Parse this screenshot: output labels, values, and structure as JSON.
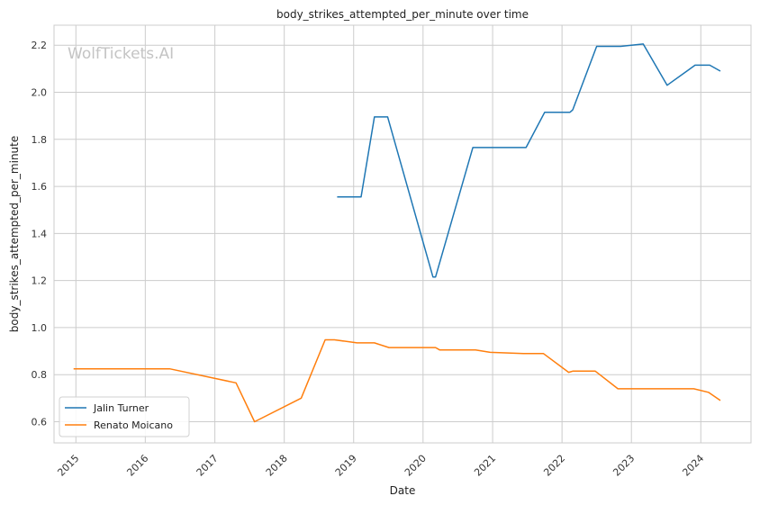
{
  "chart_data": {
    "type": "line",
    "title": "body_strikes_attempted_per_minute over time",
    "xlabel": "Date",
    "ylabel": "body_strikes_attempted_per_minute",
    "watermark": "WolfTickets.AI",
    "x_ticks": [
      "2015",
      "2016",
      "2017",
      "2018",
      "2019",
      "2020",
      "2021",
      "2022",
      "2023",
      "2024"
    ],
    "y_ticks": [
      "0.6",
      "0.8",
      "1.0",
      "1.2",
      "1.4",
      "1.6",
      "1.8",
      "2.0",
      "2.2"
    ],
    "xlim": [
      "2014-09-08",
      "2024-09-21"
    ],
    "ylim": [
      0.51,
      2.285
    ],
    "grid": true,
    "legend_position": "lower-left",
    "series": [
      {
        "name": "Jalin Turner",
        "color": "#1f77b4",
        "points": [
          [
            "2018-10-06",
            1.555
          ],
          [
            "2019-02-09",
            1.555
          ],
          [
            "2019-04-20",
            1.895
          ],
          [
            "2019-06-29",
            1.895
          ],
          [
            "2020-02-22",
            1.215
          ],
          [
            "2020-03-07",
            1.215
          ],
          [
            "2020-09-19",
            1.765
          ],
          [
            "2021-06-26",
            1.765
          ],
          [
            "2021-10-02",
            1.915
          ],
          [
            "2022-02-12",
            1.915
          ],
          [
            "2022-02-26",
            1.925
          ],
          [
            "2022-07-02",
            2.195
          ],
          [
            "2022-11-05",
            2.195
          ],
          [
            "2023-03-04",
            2.205
          ],
          [
            "2023-07-08",
            2.03
          ],
          [
            "2023-12-02",
            2.115
          ],
          [
            "2024-02-17",
            2.115
          ],
          [
            "2024-04-13",
            2.09
          ]
        ]
      },
      {
        "name": "Renato Moicano",
        "color": "#ff7f0e",
        "points": [
          [
            "2014-12-20",
            0.825
          ],
          [
            "2016-05-08",
            0.825
          ],
          [
            "2017-04-22",
            0.765
          ],
          [
            "2017-07-29",
            0.6
          ],
          [
            "2018-03-31",
            0.7
          ],
          [
            "2018-08-04",
            0.948
          ],
          [
            "2018-09-22",
            0.948
          ],
          [
            "2019-01-19",
            0.935
          ],
          [
            "2019-04-20",
            0.935
          ],
          [
            "2019-07-06",
            0.915
          ],
          [
            "2020-03-07",
            0.915
          ],
          [
            "2020-03-28",
            0.905
          ],
          [
            "2020-10-03",
            0.905
          ],
          [
            "2020-12-19",
            0.895
          ],
          [
            "2021-06-12",
            0.89
          ],
          [
            "2021-09-25",
            0.89
          ],
          [
            "2022-02-05",
            0.81
          ],
          [
            "2022-02-26",
            0.815
          ],
          [
            "2022-06-25",
            0.815
          ],
          [
            "2022-10-22",
            0.74
          ],
          [
            "2023-11-25",
            0.74
          ],
          [
            "2024-02-10",
            0.725
          ],
          [
            "2024-04-13",
            0.69
          ]
        ]
      }
    ]
  }
}
